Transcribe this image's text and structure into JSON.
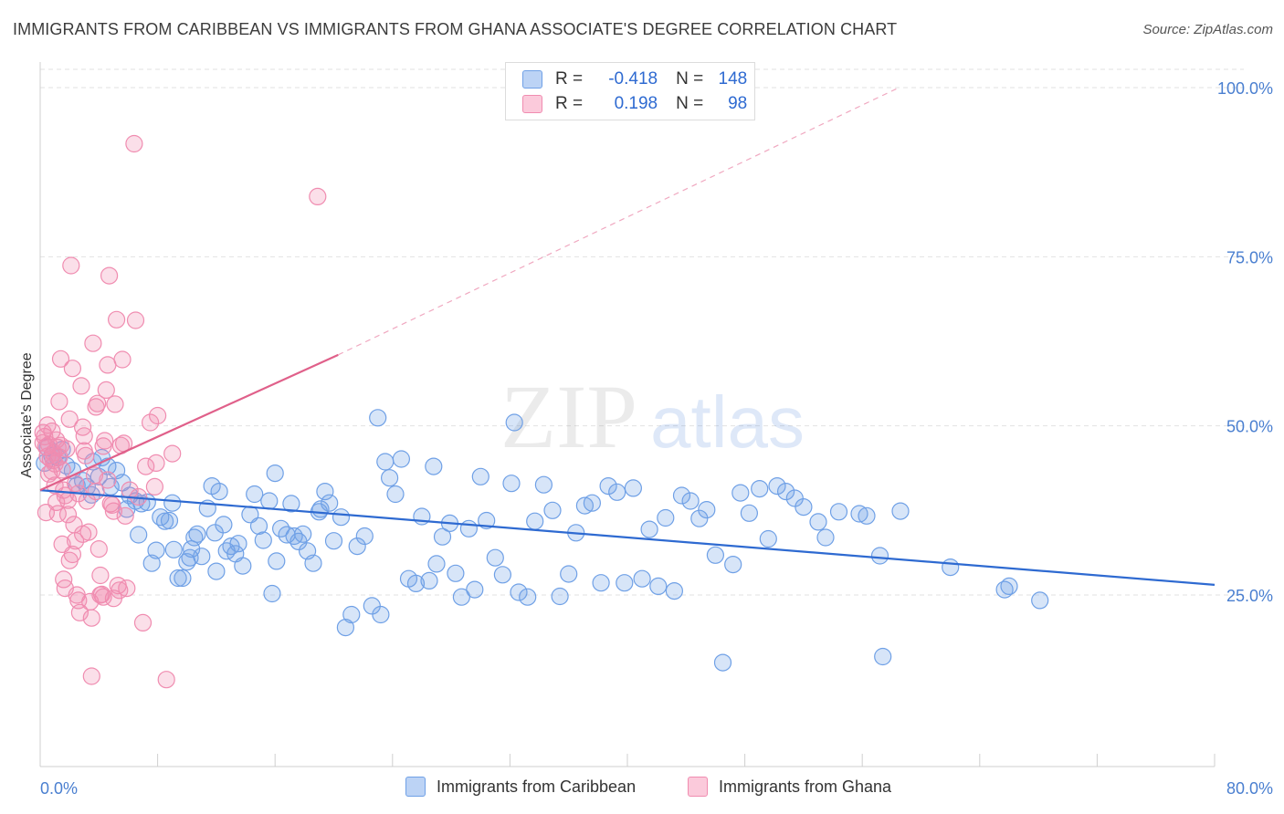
{
  "header": {
    "title": "IMMIGRANTS FROM CARIBBEAN VS IMMIGRANTS FROM GHANA ASSOCIATE'S DEGREE CORRELATION CHART",
    "source": "Source: ZipAtlas.com"
  },
  "watermark": {
    "zip": "ZIP",
    "atlas": "atlas"
  },
  "legend": {
    "rows": [
      {
        "r_label": "R =",
        "r_value": "-0.418",
        "n_label": "N =",
        "n_value": "148",
        "color": "#6fa0e6"
      },
      {
        "r_label": "R =",
        "r_value": "0.198",
        "n_label": "N =",
        "n_value": "98",
        "color": "#f08cb0"
      }
    ]
  },
  "chart_data": {
    "type": "scatter",
    "title": "IMMIGRANTS FROM CARIBBEAN VS IMMIGRANTS FROM GHANA ASSOCIATE'S DEGREE CORRELATION CHART",
    "xlabel": "",
    "ylabel": "Associate's Degree",
    "xlim": [
      0,
      80
    ],
    "ylim": [
      0,
      105
    ],
    "x_tick_labels": [
      "0.0%",
      "80.0%"
    ],
    "y_ticks": [
      25,
      50,
      75,
      100
    ],
    "y_tick_labels": [
      "25.0%",
      "50.0%",
      "75.0%",
      "100.0%"
    ],
    "grid": true,
    "legend_position": "bottom",
    "series": [
      {
        "name": "Immigrants from Caribbean",
        "color": "#6fa0e6",
        "line_color": "#2e6ad1",
        "trend": {
          "x": [
            0,
            80
          ],
          "y": [
            40.5,
            26.5
          ]
        },
        "points": [
          [
            0.3,
            44.5
          ],
          [
            0.5,
            46.8
          ],
          [
            0.8,
            45.6
          ],
          [
            1.2,
            45.3
          ],
          [
            1.5,
            46.5
          ],
          [
            1.8,
            44.1
          ],
          [
            2.2,
            43.4
          ],
          [
            2.5,
            41.2
          ],
          [
            2.9,
            41.9
          ],
          [
            3.2,
            41.0
          ],
          [
            3.5,
            39.8
          ],
          [
            3.6,
            44.7
          ],
          [
            4.0,
            42.5
          ],
          [
            4.2,
            45.3
          ],
          [
            4.6,
            44.0
          ],
          [
            4.8,
            41.0
          ],
          [
            5.2,
            43.4
          ],
          [
            5.6,
            41.6
          ],
          [
            5.9,
            37.7
          ],
          [
            6.1,
            39.7
          ],
          [
            6.5,
            38.9
          ],
          [
            6.7,
            33.9
          ],
          [
            6.9,
            38.5
          ],
          [
            7.3,
            38.7
          ],
          [
            7.6,
            29.7
          ],
          [
            7.9,
            31.6
          ],
          [
            8.2,
            36.5
          ],
          [
            8.5,
            35.9
          ],
          [
            8.8,
            36.0
          ],
          [
            9.0,
            38.6
          ],
          [
            9.1,
            31.7
          ],
          [
            9.4,
            27.5
          ],
          [
            9.7,
            27.5
          ],
          [
            10.0,
            29.9
          ],
          [
            10.3,
            31.8
          ],
          [
            10.5,
            33.5
          ],
          [
            10.7,
            34.0
          ],
          [
            11.0,
            30.7
          ],
          [
            11.4,
            37.8
          ],
          [
            11.7,
            41.1
          ],
          [
            11.9,
            34.2
          ],
          [
            12.2,
            40.3
          ],
          [
            12.5,
            35.4
          ],
          [
            12.7,
            31.5
          ],
          [
            13.0,
            32.2
          ],
          [
            13.3,
            31.1
          ],
          [
            13.5,
            32.6
          ],
          [
            13.8,
            29.3
          ],
          [
            14.3,
            36.9
          ],
          [
            14.6,
            39.9
          ],
          [
            14.9,
            35.2
          ],
          [
            15.2,
            33.1
          ],
          [
            15.6,
            38.9
          ],
          [
            15.8,
            25.2
          ],
          [
            16.1,
            30.0
          ],
          [
            16.4,
            34.8
          ],
          [
            16.8,
            33.9
          ],
          [
            17.1,
            38.5
          ],
          [
            17.3,
            33.7
          ],
          [
            17.6,
            32.9
          ],
          [
            17.9,
            34.0
          ],
          [
            18.2,
            31.5
          ],
          [
            18.6,
            29.7
          ],
          [
            19.1,
            37.7
          ],
          [
            19.4,
            40.3
          ],
          [
            19.7,
            38.6
          ],
          [
            20.0,
            33.0
          ],
          [
            20.5,
            36.5
          ],
          [
            20.8,
            20.2
          ],
          [
            21.2,
            22.1
          ],
          [
            21.6,
            32.2
          ],
          [
            22.1,
            33.7
          ],
          [
            22.6,
            23.4
          ],
          [
            23.2,
            22.1
          ],
          [
            23.5,
            44.7
          ],
          [
            23.8,
            42.3
          ],
          [
            24.2,
            39.9
          ],
          [
            24.6,
            45.1
          ],
          [
            25.1,
            27.4
          ],
          [
            25.6,
            26.7
          ],
          [
            26.0,
            36.6
          ],
          [
            26.5,
            27.1
          ],
          [
            27.0,
            29.6
          ],
          [
            27.4,
            33.6
          ],
          [
            27.9,
            35.6
          ],
          [
            28.3,
            28.2
          ],
          [
            28.7,
            24.7
          ],
          [
            29.2,
            34.8
          ],
          [
            29.6,
            25.8
          ],
          [
            30.0,
            42.5
          ],
          [
            30.4,
            36.0
          ],
          [
            31.0,
            30.5
          ],
          [
            31.5,
            28.0
          ],
          [
            32.1,
            41.5
          ],
          [
            32.6,
            25.4
          ],
          [
            33.2,
            24.7
          ],
          [
            33.7,
            35.9
          ],
          [
            34.3,
            41.3
          ],
          [
            34.9,
            37.5
          ],
          [
            35.4,
            24.8
          ],
          [
            36.0,
            28.1
          ],
          [
            36.5,
            34.2
          ],
          [
            37.1,
            38.2
          ],
          [
            37.6,
            38.6
          ],
          [
            38.2,
            26.8
          ],
          [
            38.7,
            41.1
          ],
          [
            39.3,
            40.2
          ],
          [
            39.8,
            26.8
          ],
          [
            40.4,
            40.8
          ],
          [
            41.0,
            27.4
          ],
          [
            41.5,
            34.7
          ],
          [
            42.1,
            26.3
          ],
          [
            42.6,
            36.4
          ],
          [
            43.2,
            25.6
          ],
          [
            43.7,
            39.7
          ],
          [
            44.3,
            38.9
          ],
          [
            44.9,
            36.3
          ],
          [
            45.4,
            37.6
          ],
          [
            46.0,
            30.9
          ],
          [
            46.5,
            15.0
          ],
          [
            47.2,
            29.5
          ],
          [
            47.7,
            40.1
          ],
          [
            48.3,
            37.1
          ],
          [
            49.0,
            40.7
          ],
          [
            49.6,
            33.3
          ],
          [
            50.2,
            41.1
          ],
          [
            50.8,
            40.3
          ],
          [
            51.4,
            39.3
          ],
          [
            52.0,
            38.0
          ],
          [
            53.0,
            35.8
          ],
          [
            53.5,
            33.5
          ],
          [
            54.4,
            37.3
          ],
          [
            55.8,
            37.0
          ],
          [
            56.3,
            36.7
          ],
          [
            57.2,
            30.8
          ],
          [
            57.4,
            15.9
          ],
          [
            58.6,
            37.4
          ],
          [
            62.0,
            29.1
          ],
          [
            65.7,
            25.8
          ],
          [
            66.0,
            26.3
          ],
          [
            68.1,
            24.2
          ],
          [
            10.2,
            30.5
          ],
          [
            12.0,
            28.5
          ],
          [
            23.0,
            51.2
          ],
          [
            32.3,
            50.5
          ],
          [
            16.0,
            43.0
          ],
          [
            19.0,
            37.3
          ],
          [
            26.8,
            44.0
          ]
        ]
      },
      {
        "name": "Immigrants from Ghana",
        "color": "#f08cb0",
        "line_color": "#e0608a",
        "trend": {
          "x": [
            0,
            20.3
          ],
          "y": [
            40.5,
            60.5
          ]
        },
        "trend_dashed": {
          "x": [
            20.3,
            58.5
          ],
          "y": [
            60.5,
            100
          ]
        },
        "points": [
          [
            0.2,
            47.5
          ],
          [
            0.3,
            48.4
          ],
          [
            0.4,
            46.9
          ],
          [
            0.5,
            45.5
          ],
          [
            0.6,
            47.2
          ],
          [
            0.7,
            45.1
          ],
          [
            0.8,
            49.2
          ],
          [
            0.9,
            46.0
          ],
          [
            1.0,
            44.4
          ],
          [
            1.1,
            47.9
          ],
          [
            1.2,
            46.8
          ],
          [
            1.3,
            45.4
          ],
          [
            1.4,
            47.1
          ],
          [
            0.2,
            49.0
          ],
          [
            0.5,
            50.1
          ],
          [
            0.8,
            43.3
          ],
          [
            1.0,
            41.2
          ],
          [
            1.1,
            38.7
          ],
          [
            1.2,
            37.0
          ],
          [
            1.3,
            53.6
          ],
          [
            1.4,
            59.9
          ],
          [
            1.5,
            32.5
          ],
          [
            1.6,
            27.3
          ],
          [
            1.7,
            39.7
          ],
          [
            1.8,
            46.6
          ],
          [
            1.9,
            36.9
          ],
          [
            2.0,
            51.0
          ],
          [
            2.1,
            73.7
          ],
          [
            2.2,
            58.5
          ],
          [
            2.3,
            35.4
          ],
          [
            2.4,
            33.0
          ],
          [
            2.5,
            25.0
          ],
          [
            2.6,
            24.2
          ],
          [
            2.7,
            22.4
          ],
          [
            2.8,
            55.9
          ],
          [
            2.9,
            49.8
          ],
          [
            3.0,
            48.5
          ],
          [
            3.1,
            45.6
          ],
          [
            3.2,
            38.9
          ],
          [
            3.3,
            34.3
          ],
          [
            3.4,
            24.0
          ],
          [
            3.5,
            21.6
          ],
          [
            3.6,
            62.2
          ],
          [
            3.7,
            42.7
          ],
          [
            3.8,
            40.3
          ],
          [
            3.9,
            53.3
          ],
          [
            4.0,
            31.8
          ],
          [
            4.1,
            27.9
          ],
          [
            4.2,
            25.1
          ],
          [
            4.3,
            24.7
          ],
          [
            4.4,
            47.8
          ],
          [
            4.5,
            55.3
          ],
          [
            4.6,
            59.0
          ],
          [
            4.7,
            72.2
          ],
          [
            4.8,
            38.5
          ],
          [
            4.9,
            38.3
          ],
          [
            5.0,
            37.4
          ],
          [
            5.1,
            53.2
          ],
          [
            5.2,
            65.7
          ],
          [
            5.3,
            26.4
          ],
          [
            5.4,
            25.7
          ],
          [
            5.5,
            47.1
          ],
          [
            5.6,
            59.8
          ],
          [
            5.7,
            47.4
          ],
          [
            5.8,
            36.7
          ],
          [
            6.4,
            91.7
          ],
          [
            6.5,
            65.6
          ],
          [
            7.0,
            20.9
          ],
          [
            7.2,
            44.0
          ],
          [
            7.5,
            50.5
          ],
          [
            7.8,
            41.0
          ],
          [
            8.0,
            51.5
          ],
          [
            8.6,
            12.5
          ],
          [
            9.0,
            45.9
          ],
          [
            1.6,
            40.5
          ],
          [
            1.9,
            39.0
          ],
          [
            2.4,
            41.5
          ],
          [
            2.9,
            34.0
          ],
          [
            3.5,
            13.0
          ],
          [
            4.1,
            25.0
          ],
          [
            4.6,
            42.0
          ],
          [
            5.0,
            24.5
          ],
          [
            2.6,
            40.0
          ],
          [
            1.7,
            26.0
          ],
          [
            18.9,
            83.9
          ],
          [
            0.6,
            42.9
          ],
          [
            0.9,
            44.9
          ],
          [
            3.0,
            46.3
          ],
          [
            4.3,
            47.0
          ],
          [
            6.1,
            40.5
          ],
          [
            6.7,
            39.5
          ],
          [
            2.2,
            31.0
          ],
          [
            1.5,
            43.5
          ],
          [
            3.8,
            52.8
          ],
          [
            0.4,
            37.2
          ],
          [
            2.0,
            30.1
          ],
          [
            5.9,
            26.0
          ],
          [
            7.9,
            44.5
          ]
        ]
      }
    ]
  }
}
